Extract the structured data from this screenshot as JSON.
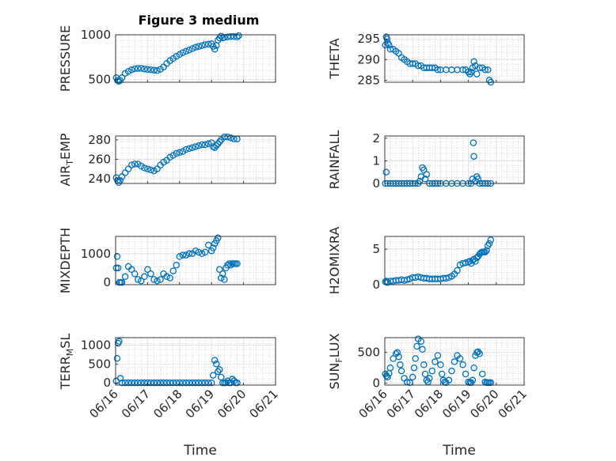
{
  "figure": {
    "title": "Figure 3 medium",
    "colors": {
      "marker": "#0072BD",
      "axis": "#262626",
      "grid_major": "#dfdfdf",
      "grid_minor": "#b8b8b8"
    }
  },
  "chart_data": [
    {
      "id": "pressure",
      "type": "scatter",
      "ylabel": "PRESSURE",
      "ylim": [
        470,
        1000
      ],
      "yticks": [
        500,
        1000
      ],
      "ytick_labels": [
        "500",
        "1000"
      ],
      "xlim": [
        0,
        5
      ],
      "x": [
        0.02,
        0.06,
        0.1,
        0.14,
        0.2,
        0.3,
        0.4,
        0.5,
        0.6,
        0.7,
        0.8,
        0.9,
        1.0,
        1.1,
        1.2,
        1.3,
        1.4,
        1.5,
        1.6,
        1.7,
        1.8,
        1.9,
        2.0,
        2.1,
        2.2,
        2.3,
        2.4,
        2.5,
        2.6,
        2.7,
        2.8,
        2.9,
        3.0,
        3.05,
        3.1,
        3.15,
        3.2,
        3.25,
        3.3,
        3.35,
        3.4,
        3.5,
        3.6,
        3.7,
        3.8,
        3.85
      ],
      "y": [
        520,
        490,
        480,
        490,
        520,
        570,
        590,
        610,
        620,
        625,
        625,
        618,
        612,
        610,
        605,
        600,
        615,
        640,
        680,
        710,
        735,
        760,
        780,
        800,
        815,
        830,
        845,
        860,
        870,
        880,
        890,
        895,
        900,
        870,
        840,
        880,
        940,
        965,
        985,
        965,
        970,
        975,
        980,
        980,
        975,
        990
      ]
    },
    {
      "id": "theta",
      "type": "scatter",
      "ylabel": "THETA",
      "ylim": [
        284.5,
        296
      ],
      "yticks": [
        285,
        290,
        295
      ],
      "ytick_labels": [
        "285",
        "290",
        "295"
      ],
      "xlim": [
        0,
        5
      ],
      "x": [
        0.02,
        0.05,
        0.08,
        0.11,
        0.15,
        0.2,
        0.3,
        0.4,
        0.5,
        0.6,
        0.7,
        0.8,
        0.9,
        1.0,
        1.1,
        1.2,
        1.3,
        1.4,
        1.5,
        1.6,
        1.7,
        1.8,
        1.9,
        2.0,
        2.2,
        2.4,
        2.6,
        2.8,
        2.9,
        3.0,
        3.05,
        3.1,
        3.15,
        3.2,
        3.25,
        3.3,
        3.4,
        3.5,
        3.6,
        3.7,
        3.75,
        3.8
      ],
      "y": [
        293.5,
        295.5,
        295,
        294,
        293.5,
        292.5,
        292.5,
        292,
        291.5,
        290.5,
        290,
        289.5,
        289,
        289,
        289,
        288.5,
        288.5,
        288,
        288,
        288,
        288,
        288,
        287.5,
        287.5,
        287.5,
        287.5,
        287.5,
        287.5,
        287.5,
        287,
        286.5,
        287,
        288,
        289.5,
        288.5,
        286.5,
        288,
        288,
        287.5,
        287.5,
        285,
        284.5
      ]
    },
    {
      "id": "air_temp",
      "type": "scatter",
      "ylabel": "AIR",
      "ylabel_sub": "T",
      "ylabel_rest": "EMP",
      "ylim": [
        235,
        284
      ],
      "yticks": [
        240,
        260,
        280
      ],
      "ytick_labels": [
        "240",
        "260",
        "280"
      ],
      "xlim": [
        0,
        5
      ],
      "x": [
        0.02,
        0.06,
        0.1,
        0.14,
        0.2,
        0.3,
        0.4,
        0.5,
        0.6,
        0.7,
        0.8,
        0.9,
        1.0,
        1.1,
        1.2,
        1.3,
        1.4,
        1.5,
        1.6,
        1.7,
        1.8,
        1.9,
        2.0,
        2.1,
        2.2,
        2.3,
        2.4,
        2.5,
        2.6,
        2.7,
        2.8,
        2.9,
        3.0,
        3.05,
        3.1,
        3.15,
        3.2,
        3.25,
        3.3,
        3.4,
        3.5,
        3.6,
        3.7,
        3.8
      ],
      "y": [
        241,
        238,
        236,
        238,
        242,
        246,
        250,
        254,
        255,
        255,
        253,
        251,
        250,
        249,
        248,
        250,
        254,
        257,
        259,
        262,
        264,
        266,
        267,
        268,
        270,
        271,
        272,
        273,
        274,
        275,
        275,
        276,
        277,
        273,
        272,
        274,
        276,
        278,
        280,
        283,
        283,
        282,
        281,
        281
      ]
    },
    {
      "id": "rainfall",
      "type": "scatter",
      "ylabel": "RAINFALL",
      "ylim": [
        0,
        2.1
      ],
      "yticks": [
        0,
        1,
        2
      ],
      "ytick_labels": [
        "0",
        "1",
        "2"
      ],
      "xlim": [
        0,
        5
      ],
      "x": [
        0.02,
        0.05,
        0.1,
        0.2,
        0.3,
        0.4,
        0.5,
        0.6,
        0.7,
        0.8,
        0.9,
        1.0,
        1.1,
        1.2,
        1.25,
        1.3,
        1.35,
        1.4,
        1.45,
        1.5,
        1.6,
        1.7,
        1.8,
        1.9,
        2.0,
        2.2,
        2.4,
        2.6,
        2.8,
        3.0,
        3.1,
        3.15,
        3.18,
        3.2,
        3.25,
        3.3,
        3.35,
        3.4,
        3.5,
        3.6,
        3.7,
        3.8
      ],
      "y": [
        0,
        0.5,
        0,
        0,
        0,
        0,
        0,
        0,
        0,
        0,
        0,
        0,
        0,
        0,
        0.1,
        0.3,
        0.7,
        0.6,
        0.2,
        0.4,
        0,
        0,
        0,
        0,
        0,
        0,
        0,
        0,
        0,
        0,
        0,
        0.2,
        1.8,
        1.2,
        0.1,
        0.3,
        0.2,
        0,
        0,
        0,
        0,
        0
      ]
    },
    {
      "id": "mixdepth",
      "type": "scatter",
      "ylabel": "MIXDEPTH",
      "ylim": [
        -80,
        1600
      ],
      "yticks": [
        0,
        1000
      ],
      "ytick_labels": [
        "0",
        "1000"
      ],
      "xlim": [
        0,
        5
      ],
      "x": [
        0.02,
        0.05,
        0.08,
        0.12,
        0.16,
        0.2,
        0.3,
        0.4,
        0.5,
        0.6,
        0.7,
        0.8,
        0.9,
        1.0,
        1.1,
        1.2,
        1.3,
        1.4,
        1.5,
        1.6,
        1.7,
        1.8,
        1.9,
        2.0,
        2.1,
        2.2,
        2.3,
        2.4,
        2.5,
        2.6,
        2.7,
        2.8,
        2.9,
        3.0,
        3.05,
        3.1,
        3.15,
        3.2,
        3.25,
        3.3,
        3.35,
        3.4,
        3.45,
        3.5,
        3.55,
        3.6,
        3.65,
        3.7,
        3.75,
        3.8
      ],
      "y": [
        500,
        900,
        500,
        0,
        0,
        0,
        200,
        550,
        450,
        300,
        100,
        50,
        200,
        450,
        300,
        100,
        50,
        100,
        300,
        200,
        150,
        400,
        600,
        900,
        950,
        950,
        1000,
        1000,
        1100,
        1050,
        1000,
        1050,
        1300,
        1100,
        1200,
        1350,
        1450,
        1550,
        450,
        150,
        300,
        100,
        500,
        600,
        650,
        600,
        650,
        650,
        650,
        650
      ]
    },
    {
      "id": "h2omixra",
      "type": "scatter",
      "ylabel": "H2OMIXRA",
      "ylim": [
        0,
        6.8
      ],
      "yticks": [
        0,
        5
      ],
      "ytick_labels": [
        "0",
        "5"
      ],
      "xlim": [
        0,
        5
      ],
      "x": [
        0.02,
        0.06,
        0.1,
        0.2,
        0.3,
        0.4,
        0.5,
        0.6,
        0.7,
        0.8,
        0.9,
        1.0,
        1.1,
        1.2,
        1.3,
        1.4,
        1.5,
        1.6,
        1.7,
        1.8,
        1.9,
        2.0,
        2.1,
        2.2,
        2.3,
        2.4,
        2.5,
        2.6,
        2.7,
        2.8,
        2.9,
        3.0,
        3.05,
        3.1,
        3.15,
        3.2,
        3.25,
        3.3,
        3.35,
        3.4,
        3.45,
        3.5,
        3.55,
        3.6,
        3.65,
        3.7,
        3.75,
        3.8
      ],
      "y": [
        0.4,
        0.5,
        0.3,
        0.5,
        0.5,
        0.6,
        0.6,
        0.7,
        0.6,
        0.7,
        0.8,
        1.0,
        1.0,
        1.1,
        1.0,
        0.9,
        0.9,
        0.8,
        0.8,
        0.8,
        0.8,
        0.8,
        0.9,
        0.9,
        1.0,
        1.2,
        1.5,
        2.0,
        2.8,
        3.0,
        3.1,
        3.2,
        3.3,
        3.0,
        3.4,
        3.6,
        3.3,
        3.8,
        4.0,
        4.3,
        4.5,
        4.6,
        4.6,
        4.6,
        4.8,
        5.5,
        5.8,
        6.3
      ]
    },
    {
      "id": "terr_msl",
      "type": "scatter",
      "ylabel": "TERR",
      "ylabel_sub": "M",
      "ylabel_rest": "SL",
      "ylim": [
        -60,
        1200
      ],
      "yticks": [
        0,
        500,
        1000
      ],
      "ytick_labels": [
        "0",
        "500",
        "1000"
      ],
      "xlim": [
        0,
        5
      ],
      "xticks": [
        0,
        1,
        2,
        3,
        4,
        5
      ],
      "xtick_labels": [
        "06/16",
        "06/17",
        "06/18",
        "06/19",
        "06/20",
        "06/21"
      ],
      "xlabel": "Time",
      "x": [
        0.02,
        0.05,
        0.08,
        0.11,
        0.15,
        0.2,
        0.3,
        0.4,
        0.5,
        0.6,
        0.7,
        0.8,
        0.9,
        1.0,
        1.1,
        1.2,
        1.3,
        1.4,
        1.5,
        1.6,
        1.7,
        1.8,
        1.9,
        2.0,
        2.1,
        2.2,
        2.3,
        2.4,
        2.5,
        2.6,
        2.7,
        2.8,
        2.9,
        3.0,
        3.05,
        3.1,
        3.15,
        3.2,
        3.25,
        3.3,
        3.35,
        3.4,
        3.45,
        3.5,
        3.55,
        3.6,
        3.65,
        3.7,
        3.75,
        3.8
      ],
      "y": [
        50,
        650,
        1050,
        1100,
        120,
        0,
        0,
        0,
        0,
        0,
        0,
        0,
        0,
        0,
        0,
        0,
        0,
        0,
        0,
        0,
        0,
        0,
        0,
        0,
        0,
        0,
        0,
        0,
        0,
        0,
        0,
        0,
        0,
        0,
        200,
        600,
        500,
        300,
        350,
        150,
        0,
        0,
        0,
        50,
        0,
        0,
        100,
        50,
        0,
        0
      ]
    },
    {
      "id": "sun_flux",
      "type": "scatter",
      "ylabel": "SUN",
      "ylabel_sub": "F",
      "ylabel_rest": "LUX",
      "ylim": [
        -30,
        740
      ],
      "yticks": [
        0,
        500
      ],
      "ytick_labels": [
        "0",
        "500"
      ],
      "xlim": [
        0,
        5
      ],
      "xticks": [
        0,
        1,
        2,
        3,
        4,
        5
      ],
      "xtick_labels": [
        "06/16",
        "06/17",
        "06/18",
        "06/19",
        "06/20",
        "06/21"
      ],
      "xlabel": "Time",
      "x": [
        0.02,
        0.06,
        0.1,
        0.15,
        0.2,
        0.3,
        0.4,
        0.45,
        0.5,
        0.55,
        0.6,
        0.7,
        0.8,
        0.9,
        1.0,
        1.05,
        1.1,
        1.15,
        1.2,
        1.3,
        1.35,
        1.4,
        1.45,
        1.5,
        1.55,
        1.6,
        1.7,
        1.8,
        1.9,
        2.0,
        2.05,
        2.1,
        2.15,
        2.2,
        2.3,
        2.4,
        2.5,
        2.6,
        2.7,
        2.8,
        2.9,
        3.0,
        3.05,
        3.1,
        3.15,
        3.2,
        3.25,
        3.3,
        3.35,
        3.4,
        3.5,
        3.6,
        3.65,
        3.7,
        3.75,
        3.8
      ],
      "y": [
        150,
        120,
        100,
        160,
        250,
        400,
        480,
        500,
        430,
        300,
        200,
        80,
        20,
        10,
        100,
        250,
        400,
        600,
        720,
        680,
        550,
        300,
        150,
        50,
        20,
        80,
        200,
        350,
        450,
        300,
        150,
        50,
        20,
        10,
        50,
        200,
        350,
        450,
        400,
        300,
        150,
        20,
        10,
        10,
        50,
        250,
        450,
        500,
        510,
        480,
        150,
        20,
        10,
        10,
        10,
        10
      ]
    }
  ]
}
